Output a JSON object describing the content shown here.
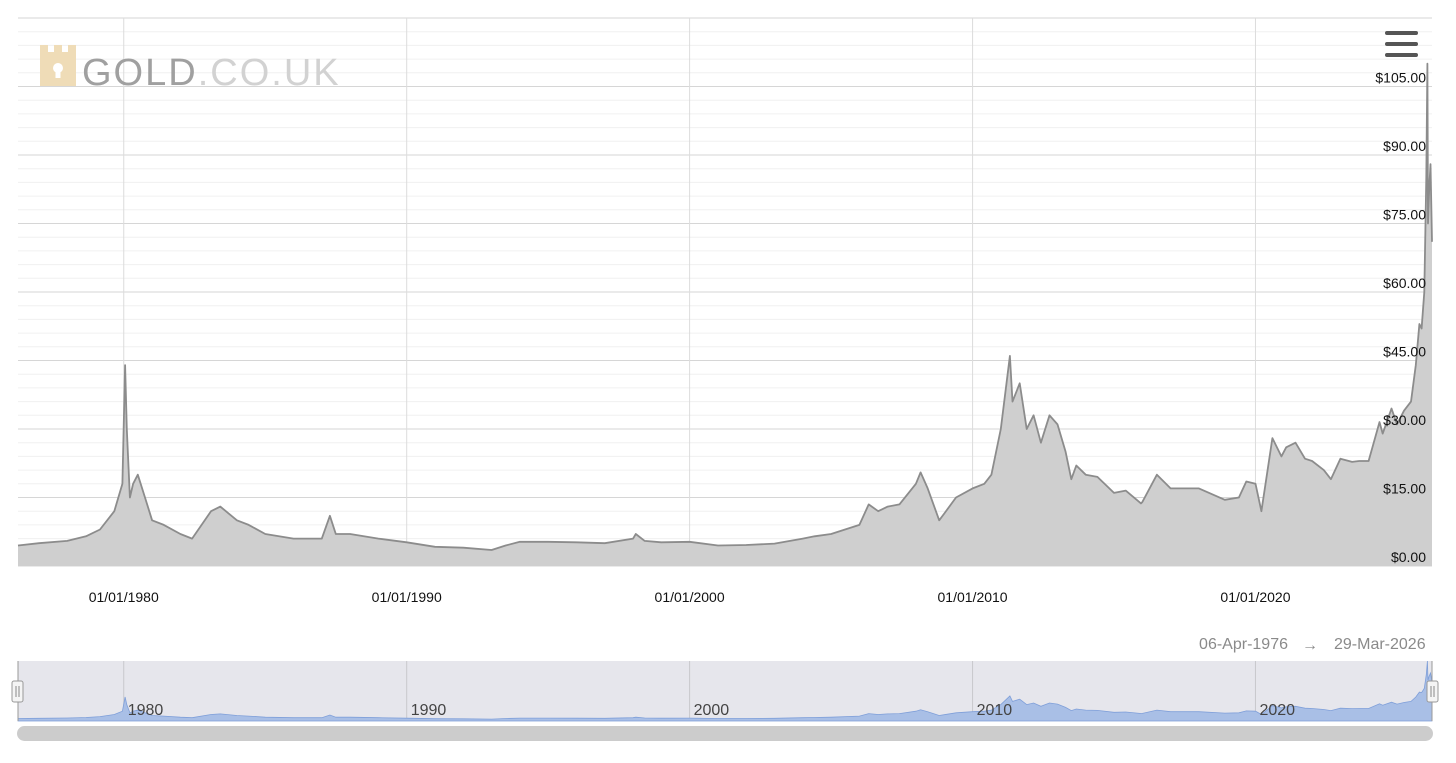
{
  "logo": {
    "name": "GOLD",
    "domain": ".CO.UK"
  },
  "menu": {
    "icon": "hamburger-menu-icon"
  },
  "range": {
    "from": "06-Apr-1976",
    "arrow": "→",
    "to": "29-Mar-2026"
  },
  "navigator": {
    "labels": [
      "1980",
      "1990",
      "2000",
      "2010",
      "2020"
    ]
  },
  "colors": {
    "line": "#8c8c8c",
    "area": "#cfcfcf",
    "nav_area": "#a9bfe6",
    "nav_bg": "#e6e6ec",
    "scrollbar": "#cccccc"
  },
  "chart_data": {
    "type": "area",
    "xlim": [
      "1976-04-06",
      "2026-03-29"
    ],
    "ylim": [
      0,
      105
    ],
    "y_ticks": [
      0,
      15,
      30,
      45,
      60,
      75,
      90,
      105
    ],
    "y_tick_labels": [
      "$0.00",
      "$15.00",
      "$30.00",
      "$45.00",
      "$60.00",
      "$75.00",
      "$90.00",
      "$105.00"
    ],
    "x_ticks": [
      "1980-01-01",
      "1990-01-01",
      "2000-01-01",
      "2010-01-01",
      "2020-01-01"
    ],
    "x_tick_labels": [
      "01/01/1980",
      "01/01/1990",
      "01/01/2000",
      "01/01/2010",
      "01/01/2020"
    ],
    "grid": true,
    "legend": "none",
    "series": [
      {
        "x": [
          "1976-04-06",
          "1977-01-01",
          "1978-01-01",
          "1978-09-01",
          "1979-03-01",
          "1979-09-01",
          "1979-12-15",
          "1980-01-18",
          "1980-02-10",
          "1980-03-20",
          "1980-05-01",
          "1980-07-01",
          "1980-10-01",
          "1981-01-01",
          "1981-06-01",
          "1982-01-01",
          "1982-06-01",
          "1983-02-01",
          "1983-06-01",
          "1984-01-01",
          "1984-06-01",
          "1985-01-01",
          "1986-01-01",
          "1987-01-01",
          "1987-04-15",
          "1987-07-01",
          "1988-01-01",
          "1989-01-01",
          "1990-01-01",
          "1991-01-01",
          "1992-01-01",
          "1993-01-01",
          "1993-07-01",
          "1994-01-01",
          "1995-01-01",
          "1996-01-01",
          "1997-01-01",
          "1998-01-01",
          "1998-02-05",
          "1998-06-01",
          "1999-01-01",
          "2000-01-01",
          "2001-01-01",
          "2002-01-01",
          "2003-01-01",
          "2004-01-01",
          "2004-06-01",
          "2005-01-01",
          "2006-01-01",
          "2006-05-01",
          "2006-09-01",
          "2007-01-01",
          "2007-06-01",
          "2008-01-01",
          "2008-03-01",
          "2008-06-01",
          "2008-10-27",
          "2009-01-01",
          "2009-06-01",
          "2010-01-01",
          "2010-06-01",
          "2010-09-01",
          "2011-01-01",
          "2011-04-28",
          "2011-06-01",
          "2011-09-01",
          "2011-12-01",
          "2012-02-28",
          "2012-06-01",
          "2012-09-20",
          "2013-01-01",
          "2013-04-16",
          "2013-06-28",
          "2013-09-01",
          "2014-01-01",
          "2014-06-01",
          "2015-01-01",
          "2015-06-01",
          "2015-12-15",
          "2016-01-01",
          "2016-07-08",
          "2017-01-01",
          "2018-01-01",
          "2018-12-01",
          "2019-06-01",
          "2019-09-05",
          "2020-01-01",
          "2020-03-18",
          "2020-08-07",
          "2020-12-01",
          "2021-02-01",
          "2021-06-01",
          "2021-10-01",
          "2022-01-01",
          "2022-06-01",
          "2022-09-01",
          "2023-01-01",
          "2023-06-01",
          "2023-09-01",
          "2024-01-01",
          "2024-05-20",
          "2024-07-01",
          "2024-10-22",
          "2025-01-01",
          "2025-04-01",
          "2025-07-01",
          "2025-09-01",
          "2025-10-17",
          "2025-11-15",
          "2025-12-20",
          "2026-01-15",
          "2026-01-29",
          "2026-02-05",
          "2026-02-20",
          "2026-03-10",
          "2026-03-29"
        ],
        "y": [
          4.5,
          5,
          5.5,
          6.5,
          8,
          12,
          18,
          44,
          30,
          15,
          18,
          20,
          15,
          10,
          9,
          7,
          6,
          12,
          13,
          10,
          9,
          7,
          6,
          6,
          11,
          7,
          7,
          6,
          5.2,
          4.2,
          4,
          3.5,
          4.5,
          5.3,
          5.3,
          5.2,
          5,
          6,
          7,
          5.5,
          5.2,
          5.3,
          4.5,
          4.6,
          4.9,
          6,
          6.5,
          7,
          9,
          13.5,
          12,
          13,
          13.5,
          18,
          20.5,
          17,
          10,
          11.5,
          15,
          17,
          18,
          20,
          30,
          46,
          36,
          40,
          30,
          33,
          27,
          33,
          31,
          25,
          19,
          22,
          20,
          19.5,
          16,
          16.5,
          13.7,
          14,
          20,
          17,
          17,
          14.5,
          15,
          18.5,
          18,
          12,
          28,
          24,
          26,
          27,
          23.5,
          23,
          21,
          19,
          23.5,
          22.8,
          23,
          23,
          31.5,
          29,
          34.5,
          31,
          34,
          36,
          44,
          53,
          52,
          60,
          85,
          110,
          75,
          82,
          88,
          71
        ]
      }
    ]
  }
}
